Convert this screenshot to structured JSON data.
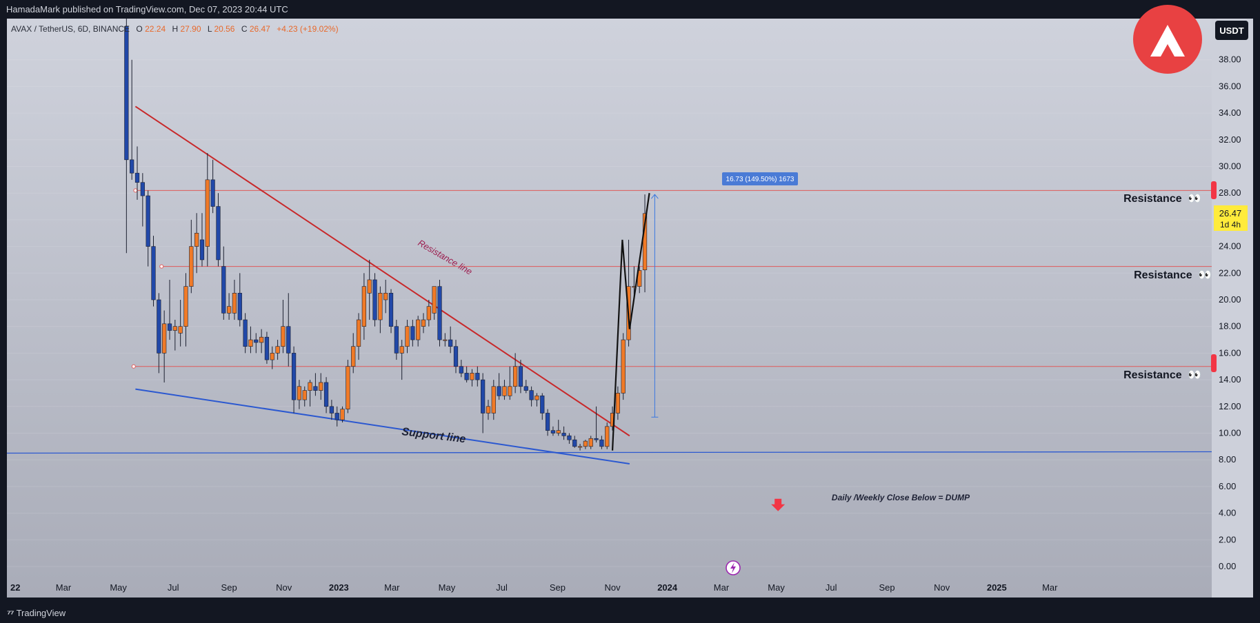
{
  "header": {
    "publisher": "HamadaMark published on TradingView.com, Dec 07, 2023 20:44 UTC"
  },
  "footer": {
    "brand": "TradingView"
  },
  "legend": {
    "symbol": "AVAX / TetherUS, 6D, BINANCE",
    "o_label": "O",
    "o_value": "22.24",
    "h_label": "H",
    "h_value": "27.90",
    "l_label": "L",
    "l_value": "20.56",
    "c_label": "C",
    "c_value": "26.47",
    "change": "+4.23 (+19.02%)"
  },
  "currency_button": "USDT",
  "price_badge": {
    "price": "26.47",
    "countdown": "1d 4h"
  },
  "measure_label": "16.73 (149.50%) 1673",
  "annotations": {
    "resistance_line": "Resistance line",
    "support_line": "Support line",
    "resistance": "Resistance",
    "dump": "Daily /Weekly Close Below = DUMP",
    "eyes": "👀"
  },
  "colors": {
    "up": "#f07a27",
    "down": "#2148a8",
    "resistance_h": "#e05a5a",
    "trend_red": "#c8282a",
    "trend_blue": "#2b58d0",
    "zigzag": "#111111",
    "measure": "#3a78e0",
    "logo": "#e84142"
  },
  "chart_data": {
    "type": "candlestick",
    "symbol": "AVAX / TetherUS",
    "interval": "6D",
    "y_range": [
      0,
      40
    ],
    "y_ticks": [
      0,
      2,
      4,
      6,
      8,
      10,
      12,
      14,
      16,
      18,
      20,
      22,
      24,
      26,
      28,
      30,
      32,
      34,
      36,
      38
    ],
    "x_tick_labels": [
      "22",
      "Mar",
      "May",
      "Jul",
      "Sep",
      "Nov",
      "2023",
      "Mar",
      "May",
      "Jul",
      "Sep",
      "Nov",
      "2024",
      "Mar",
      "May",
      "Jul",
      "Sep",
      "Nov",
      "2025",
      "Mar"
    ],
    "x_tick_dates": [
      "2022-01-01",
      "2022-03-01",
      "2022-05-01",
      "2022-07-01",
      "2022-09-01",
      "2022-11-01",
      "2023-01-01",
      "2023-03-01",
      "2023-05-01",
      "2023-07-01",
      "2023-09-01",
      "2023-11-01",
      "2024-01-01",
      "2024-03-01",
      "2024-05-01",
      "2024-07-01",
      "2024-09-01",
      "2024-11-01",
      "2025-01-01",
      "2025-03-01"
    ],
    "candles": [
      {
        "t": "2022-05-07",
        "o": 40.5,
        "h": 42.0,
        "l": 23.5,
        "c": 30.5
      },
      {
        "t": "2022-05-13",
        "o": 30.5,
        "h": 38.0,
        "l": 29.0,
        "c": 29.5
      },
      {
        "t": "2022-05-19",
        "o": 29.5,
        "h": 31.5,
        "l": 27.5,
        "c": 28.8
      },
      {
        "t": "2022-05-25",
        "o": 28.8,
        "h": 29.5,
        "l": 25.5,
        "c": 27.8
      },
      {
        "t": "2022-05-31",
        "o": 27.8,
        "h": 28.2,
        "l": 22.5,
        "c": 24.0
      },
      {
        "t": "2022-06-06",
        "o": 24.0,
        "h": 24.8,
        "l": 19.5,
        "c": 20.0
      },
      {
        "t": "2022-06-12",
        "o": 20.0,
        "h": 20.5,
        "l": 14.5,
        "c": 16.0
      },
      {
        "t": "2022-06-18",
        "o": 16.0,
        "h": 19.2,
        "l": 13.8,
        "c": 18.2
      },
      {
        "t": "2022-06-24",
        "o": 18.2,
        "h": 21.5,
        "l": 17.0,
        "c": 17.7
      },
      {
        "t": "2022-06-30",
        "o": 17.7,
        "h": 18.5,
        "l": 16.2,
        "c": 18.0
      },
      {
        "t": "2022-07-06",
        "o": 17.5,
        "h": 20.0,
        "l": 16.5,
        "c": 18.0
      },
      {
        "t": "2022-07-12",
        "o": 18.0,
        "h": 22.0,
        "l": 16.5,
        "c": 21.0
      },
      {
        "t": "2022-07-18",
        "o": 21.0,
        "h": 26.0,
        "l": 20.5,
        "c": 24.0
      },
      {
        "t": "2022-07-24",
        "o": 24.0,
        "h": 26.5,
        "l": 22.0,
        "c": 25.0
      },
      {
        "t": "2022-07-30",
        "o": 24.5,
        "h": 26.5,
        "l": 22.5,
        "c": 23.0
      },
      {
        "t": "2022-08-05",
        "o": 24.0,
        "h": 31.0,
        "l": 22.5,
        "c": 29.0
      },
      {
        "t": "2022-08-11",
        "o": 29.0,
        "h": 30.5,
        "l": 26.5,
        "c": 27.0
      },
      {
        "t": "2022-08-17",
        "o": 27.0,
        "h": 28.0,
        "l": 22.5,
        "c": 23.0
      },
      {
        "t": "2022-08-23",
        "o": 22.5,
        "h": 24.0,
        "l": 18.5,
        "c": 19.0
      },
      {
        "t": "2022-08-29",
        "o": 19.0,
        "h": 20.5,
        "l": 18.5,
        "c": 19.5
      },
      {
        "t": "2022-09-04",
        "o": 19.0,
        "h": 21.5,
        "l": 18.5,
        "c": 20.5
      },
      {
        "t": "2022-09-10",
        "o": 20.5,
        "h": 22.0,
        "l": 18.0,
        "c": 18.5
      },
      {
        "t": "2022-09-16",
        "o": 18.5,
        "h": 19.0,
        "l": 16.0,
        "c": 16.5
      },
      {
        "t": "2022-09-22",
        "o": 16.5,
        "h": 18.0,
        "l": 16.0,
        "c": 17.0
      },
      {
        "t": "2022-09-28",
        "o": 17.0,
        "h": 17.5,
        "l": 16.0,
        "c": 16.8
      },
      {
        "t": "2022-10-04",
        "o": 16.8,
        "h": 17.8,
        "l": 16.0,
        "c": 17.2
      },
      {
        "t": "2022-10-10",
        "o": 17.2,
        "h": 17.6,
        "l": 15.2,
        "c": 15.5
      },
      {
        "t": "2022-10-16",
        "o": 15.5,
        "h": 16.5,
        "l": 14.8,
        "c": 16.0
      },
      {
        "t": "2022-10-22",
        "o": 16.0,
        "h": 17.0,
        "l": 15.5,
        "c": 16.5
      },
      {
        "t": "2022-10-28",
        "o": 16.5,
        "h": 20.0,
        "l": 16.0,
        "c": 18.0
      },
      {
        "t": "2022-11-03",
        "o": 18.0,
        "h": 20.5,
        "l": 15.0,
        "c": 16.0
      },
      {
        "t": "2022-11-09",
        "o": 16.0,
        "h": 16.5,
        "l": 11.5,
        "c": 12.5
      },
      {
        "t": "2022-11-15",
        "o": 12.5,
        "h": 14.0,
        "l": 11.8,
        "c": 13.5
      },
      {
        "t": "2022-11-21",
        "o": 12.5,
        "h": 13.5,
        "l": 12.0,
        "c": 13.2
      },
      {
        "t": "2022-11-27",
        "o": 13.2,
        "h": 14.0,
        "l": 12.0,
        "c": 13.8
      },
      {
        "t": "2022-12-03",
        "o": 13.5,
        "h": 14.5,
        "l": 12.8,
        "c": 13.2
      },
      {
        "t": "2022-12-09",
        "o": 13.2,
        "h": 14.5,
        "l": 12.5,
        "c": 13.8
      },
      {
        "t": "2022-12-15",
        "o": 13.8,
        "h": 14.2,
        "l": 11.5,
        "c": 12.0
      },
      {
        "t": "2022-12-21",
        "o": 12.0,
        "h": 12.5,
        "l": 11.0,
        "c": 11.5
      },
      {
        "t": "2022-12-27",
        "o": 11.5,
        "h": 12.0,
        "l": 10.5,
        "c": 11.0
      },
      {
        "t": "2023-01-02",
        "o": 11.0,
        "h": 12.0,
        "l": 10.8,
        "c": 11.8
      },
      {
        "t": "2023-01-08",
        "o": 11.8,
        "h": 15.5,
        "l": 11.5,
        "c": 15.0
      },
      {
        "t": "2023-01-14",
        "o": 15.0,
        "h": 17.5,
        "l": 14.5,
        "c": 16.5
      },
      {
        "t": "2023-01-20",
        "o": 16.5,
        "h": 19.0,
        "l": 15.5,
        "c": 18.5
      },
      {
        "t": "2023-01-26",
        "o": 18.0,
        "h": 22.0,
        "l": 17.0,
        "c": 21.0
      },
      {
        "t": "2023-02-01",
        "o": 20.5,
        "h": 23.0,
        "l": 18.5,
        "c": 21.5
      },
      {
        "t": "2023-02-07",
        "o": 21.5,
        "h": 22.0,
        "l": 18.0,
        "c": 18.5
      },
      {
        "t": "2023-02-13",
        "o": 18.5,
        "h": 21.0,
        "l": 17.5,
        "c": 20.5
      },
      {
        "t": "2023-02-19",
        "o": 20.0,
        "h": 21.5,
        "l": 19.0,
        "c": 20.5
      },
      {
        "t": "2023-02-25",
        "o": 20.5,
        "h": 20.8,
        "l": 17.5,
        "c": 18.0
      },
      {
        "t": "2023-03-03",
        "o": 18.0,
        "h": 18.5,
        "l": 15.5,
        "c": 16.0
      },
      {
        "t": "2023-03-09",
        "o": 16.0,
        "h": 17.0,
        "l": 14.0,
        "c": 16.5
      },
      {
        "t": "2023-03-15",
        "o": 16.5,
        "h": 18.5,
        "l": 16.0,
        "c": 18.0
      },
      {
        "t": "2023-03-21",
        "o": 18.0,
        "h": 18.5,
        "l": 16.5,
        "c": 17.0
      },
      {
        "t": "2023-03-27",
        "o": 17.0,
        "h": 18.8,
        "l": 16.5,
        "c": 18.5
      },
      {
        "t": "2023-04-02",
        "o": 18.0,
        "h": 19.0,
        "l": 17.5,
        "c": 18.5
      },
      {
        "t": "2023-04-08",
        "o": 18.5,
        "h": 20.0,
        "l": 18.0,
        "c": 19.5
      },
      {
        "t": "2023-04-14",
        "o": 19.0,
        "h": 21.0,
        "l": 18.5,
        "c": 21.0
      },
      {
        "t": "2023-04-20",
        "o": 21.0,
        "h": 21.5,
        "l": 16.5,
        "c": 17.0
      },
      {
        "t": "2023-04-26",
        "o": 17.0,
        "h": 17.5,
        "l": 16.5,
        "c": 17.0
      },
      {
        "t": "2023-05-02",
        "o": 17.0,
        "h": 18.0,
        "l": 16.0,
        "c": 16.5
      },
      {
        "t": "2023-05-08",
        "o": 16.5,
        "h": 17.0,
        "l": 14.5,
        "c": 15.0
      },
      {
        "t": "2023-05-14",
        "o": 15.0,
        "h": 15.5,
        "l": 14.2,
        "c": 14.5
      },
      {
        "t": "2023-05-20",
        "o": 14.5,
        "h": 15.0,
        "l": 13.8,
        "c": 14.0
      },
      {
        "t": "2023-05-26",
        "o": 14.0,
        "h": 14.8,
        "l": 13.5,
        "c": 14.5
      },
      {
        "t": "2023-06-01",
        "o": 14.5,
        "h": 15.0,
        "l": 13.5,
        "c": 14.0
      },
      {
        "t": "2023-06-07",
        "o": 14.0,
        "h": 14.5,
        "l": 10.0,
        "c": 11.5
      },
      {
        "t": "2023-06-13",
        "o": 11.5,
        "h": 12.5,
        "l": 11.0,
        "c": 12.0
      },
      {
        "t": "2023-06-19",
        "o": 11.5,
        "h": 14.0,
        "l": 11.0,
        "c": 13.5
      },
      {
        "t": "2023-06-25",
        "o": 13.5,
        "h": 14.5,
        "l": 12.5,
        "c": 12.8
      },
      {
        "t": "2023-07-01",
        "o": 12.8,
        "h": 14.0,
        "l": 12.5,
        "c": 13.5
      },
      {
        "t": "2023-07-07",
        "o": 12.8,
        "h": 15.0,
        "l": 12.5,
        "c": 13.5
      },
      {
        "t": "2023-07-13",
        "o": 13.5,
        "h": 16.0,
        "l": 13.0,
        "c": 15.0
      },
      {
        "t": "2023-07-19",
        "o": 15.0,
        "h": 15.5,
        "l": 13.0,
        "c": 13.5
      },
      {
        "t": "2023-07-25",
        "o": 13.5,
        "h": 14.0,
        "l": 13.0,
        "c": 13.2
      },
      {
        "t": "2023-07-31",
        "o": 13.2,
        "h": 13.5,
        "l": 12.0,
        "c": 12.5
      },
      {
        "t": "2023-08-06",
        "o": 12.5,
        "h": 13.0,
        "l": 12.0,
        "c": 12.8
      },
      {
        "t": "2023-08-12",
        "o": 12.8,
        "h": 13.0,
        "l": 11.0,
        "c": 11.5
      },
      {
        "t": "2023-08-18",
        "o": 11.5,
        "h": 11.8,
        "l": 9.8,
        "c": 10.2
      },
      {
        "t": "2023-08-24",
        "o": 10.2,
        "h": 10.5,
        "l": 9.8,
        "c": 10.0
      },
      {
        "t": "2023-08-30",
        "o": 10.0,
        "h": 11.0,
        "l": 9.8,
        "c": 10.2
      },
      {
        "t": "2023-09-05",
        "o": 10.0,
        "h": 10.5,
        "l": 9.5,
        "c": 9.8
      },
      {
        "t": "2023-09-11",
        "o": 9.8,
        "h": 10.0,
        "l": 9.2,
        "c": 9.5
      },
      {
        "t": "2023-09-17",
        "o": 9.5,
        "h": 9.8,
        "l": 8.9,
        "c": 9.0
      },
      {
        "t": "2023-09-23",
        "o": 9.0,
        "h": 9.2,
        "l": 8.7,
        "c": 9.0
      },
      {
        "t": "2023-09-29",
        "o": 9.0,
        "h": 9.5,
        "l": 8.8,
        "c": 9.4
      },
      {
        "t": "2023-10-05",
        "o": 9.0,
        "h": 9.8,
        "l": 8.8,
        "c": 9.6
      },
      {
        "t": "2023-10-11",
        "o": 9.6,
        "h": 12.0,
        "l": 9.3,
        "c": 9.5
      },
      {
        "t": "2023-10-17",
        "o": 9.5,
        "h": 9.8,
        "l": 8.8,
        "c": 9.0
      },
      {
        "t": "2023-10-23",
        "o": 9.0,
        "h": 10.8,
        "l": 8.8,
        "c": 10.5
      },
      {
        "t": "2023-10-29",
        "o": 10.5,
        "h": 12.0,
        "l": 10.2,
        "c": 11.5
      },
      {
        "t": "2023-11-04",
        "o": 11.5,
        "h": 13.5,
        "l": 11.0,
        "c": 13.0
      },
      {
        "t": "2023-11-10",
        "o": 13.0,
        "h": 17.5,
        "l": 12.5,
        "c": 17.0
      },
      {
        "t": "2023-11-16",
        "o": 17.0,
        "h": 24.5,
        "l": 16.5,
        "c": 21.0
      },
      {
        "t": "2023-11-22",
        "o": 21.0,
        "h": 22.5,
        "l": 20.0,
        "c": 21.0
      },
      {
        "t": "2023-11-28",
        "o": 21.0,
        "h": 22.5,
        "l": 20.5,
        "c": 22.2
      },
      {
        "t": "2023-12-04",
        "o": 22.24,
        "h": 27.9,
        "l": 20.56,
        "c": 26.47
      }
    ],
    "horizontal_levels": [
      {
        "price": 28.2,
        "label": "Resistance"
      },
      {
        "price": 22.5,
        "label": "Resistance"
      },
      {
        "price": 15.0,
        "label": "Resistance"
      }
    ],
    "support_level": 8.5,
    "trend_lines": [
      {
        "name": "Resistance line",
        "from": [
          "2022-05-20",
          34.5
        ],
        "to": [
          "2023-11-20",
          9.8
        ]
      },
      {
        "name": "Support line",
        "from": [
          "2022-05-20",
          13.3
        ],
        "to": [
          "2023-11-20",
          7.7
        ]
      }
    ],
    "zigzag": [
      [
        "2023-11-01",
        8.7
      ],
      [
        "2023-11-12",
        24.5
      ],
      [
        "2023-11-20",
        17.8
      ],
      [
        "2023-12-12",
        28.0
      ]
    ],
    "measure": {
      "date": "2023-12-18",
      "from": 11.2,
      "to": 27.9,
      "label": "16.73 (149.50%) 1673"
    },
    "dump_arrow": {
      "date": "2024-05-03",
      "price": 4.3
    }
  }
}
